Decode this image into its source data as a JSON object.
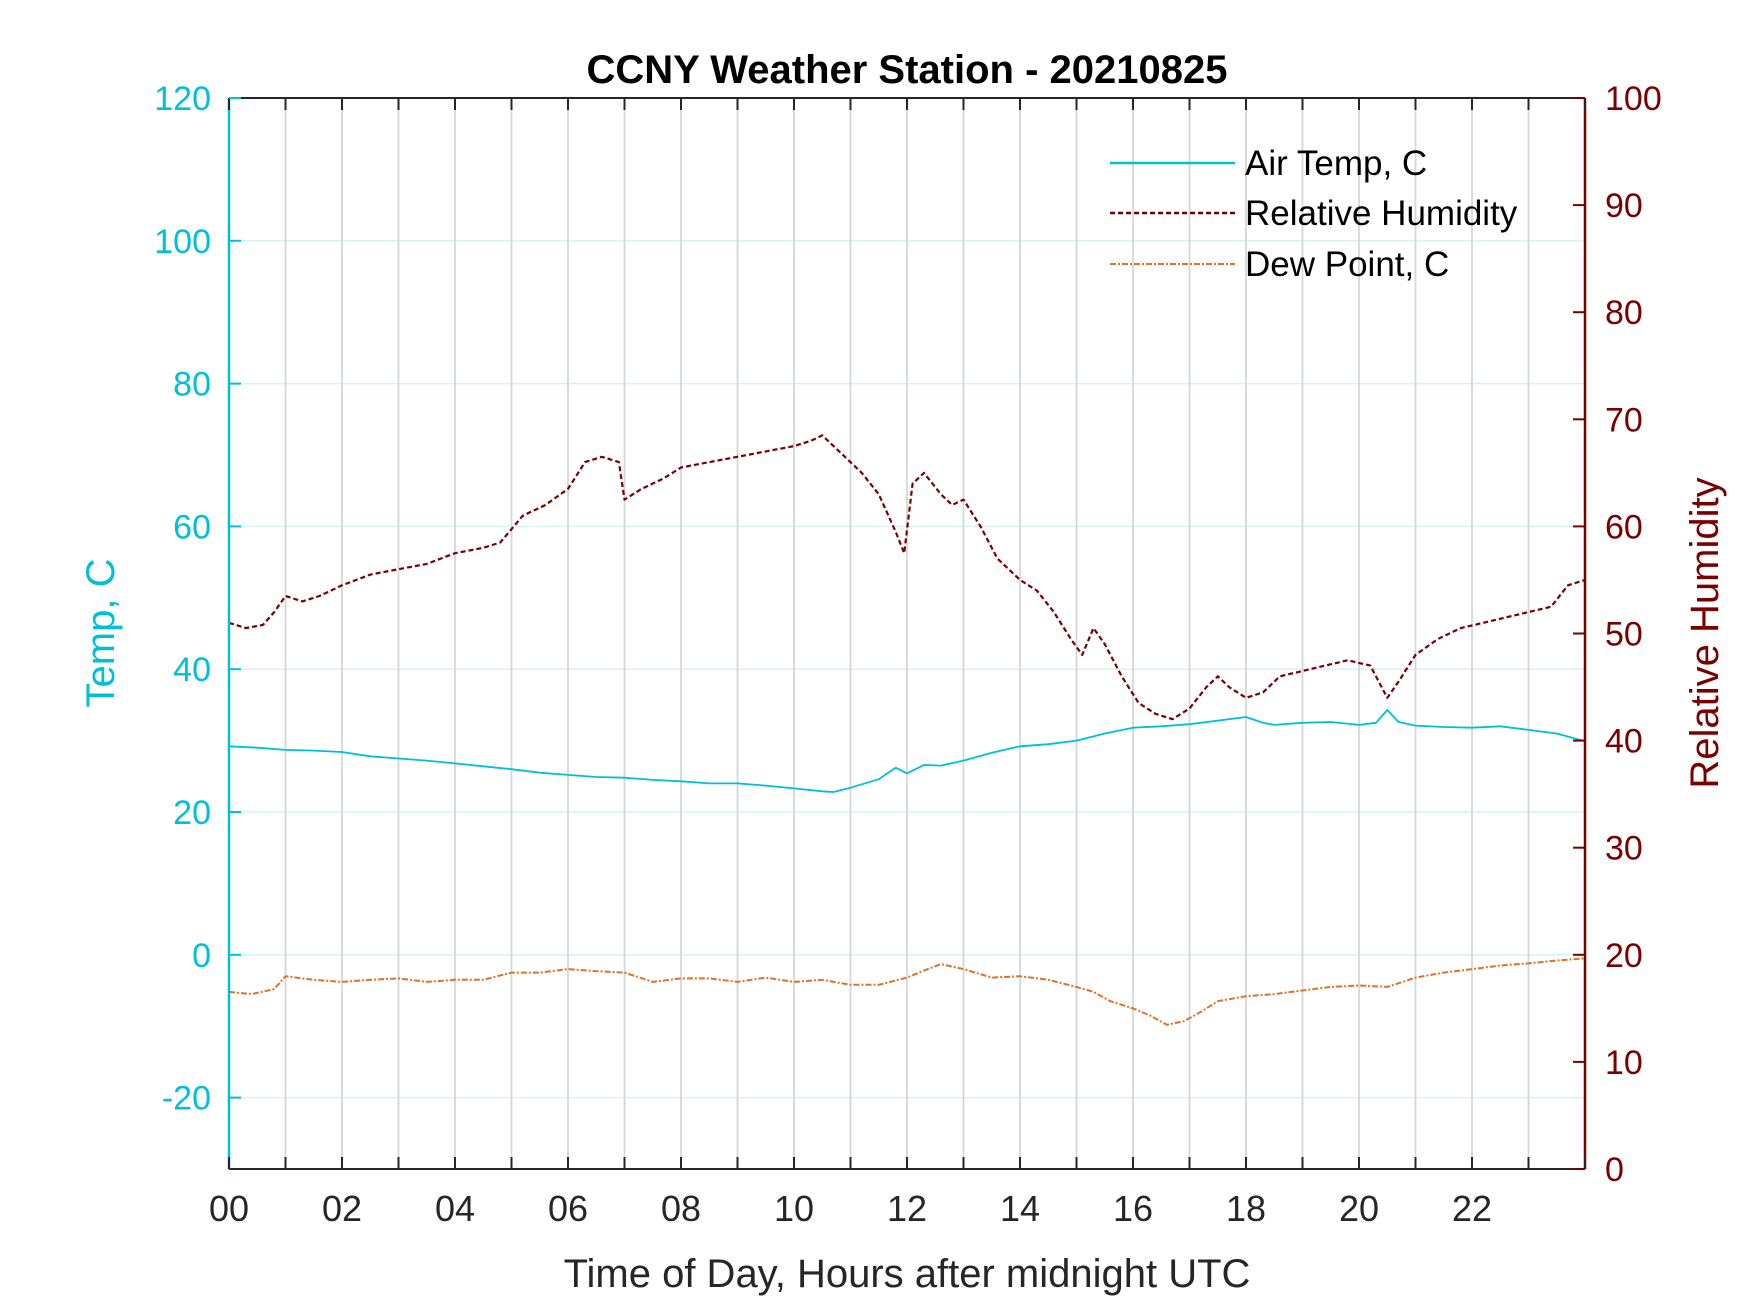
{
  "chart_data": {
    "type": "line",
    "title": "CCNY Weather Station - 20210825",
    "xlabel": "Time of Day, Hours after midnight UTC",
    "ylabel_left": "Temp, C",
    "ylabel_right": "Relative Humidity",
    "xlim": [
      0,
      24
    ],
    "ylim_left": [
      -30,
      120
    ],
    "ylim_right": [
      0,
      100
    ],
    "x_ticks": [
      0,
      2,
      4,
      6,
      8,
      10,
      12,
      14,
      16,
      18,
      20,
      22
    ],
    "x_tick_labels": [
      "00",
      "02",
      "04",
      "06",
      "08",
      "10",
      "12",
      "14",
      "16",
      "18",
      "20",
      "22"
    ],
    "y_left_ticks": [
      -20,
      0,
      20,
      40,
      60,
      80,
      100,
      120
    ],
    "y_right_ticks": [
      0,
      10,
      20,
      30,
      40,
      50,
      60,
      70,
      80,
      90,
      100
    ],
    "grid": "vertical hourly lines; horizontal lines at left-axis ticks",
    "legend_position": "top-right",
    "colors": {
      "left_axis": "#00BFD8",
      "right_axis": "#7A0000",
      "air_temp": "#00BFD8",
      "humidity": "#7A0000",
      "dew_point": "#E0702A",
      "grid_vertical": "#D3D7DB",
      "grid_horizontal": "#D6F2F6"
    },
    "series": [
      {
        "name": "Air Temp, C",
        "axis": "left",
        "style": "solid",
        "x": [
          0,
          0.5,
          1,
          1.5,
          2,
          2.5,
          3,
          3.5,
          4,
          4.5,
          5,
          5.5,
          6,
          6.5,
          7,
          7.5,
          8,
          8.5,
          9,
          9.5,
          10,
          10.5,
          10.7,
          11,
          11.5,
          11.8,
          12,
          12.3,
          12.6,
          13,
          13.5,
          14,
          14.5,
          15,
          15.5,
          16,
          16.5,
          17,
          17.5,
          18,
          18.3,
          18.5,
          19,
          19.5,
          20,
          20.3,
          20.5,
          20.7,
          21,
          21.5,
          22,
          22.5,
          23,
          23.5,
          24
        ],
        "y": [
          29.2,
          29.0,
          28.7,
          28.6,
          28.4,
          27.8,
          27.5,
          27.2,
          26.8,
          26.4,
          26.0,
          25.5,
          25.2,
          24.9,
          24.8,
          24.5,
          24.3,
          24.0,
          24.0,
          23.7,
          23.3,
          22.9,
          22.8,
          23.4,
          24.6,
          26.2,
          25.4,
          26.6,
          26.5,
          27.2,
          28.3,
          29.2,
          29.5,
          30.0,
          31.0,
          31.8,
          32.0,
          32.3,
          32.8,
          33.3,
          32.5,
          32.2,
          32.5,
          32.6,
          32.2,
          32.5,
          34.3,
          32.6,
          32.1,
          31.9,
          31.8,
          32.0,
          31.5,
          31.0,
          29.9
        ]
      },
      {
        "name": "Relative Humidity",
        "axis": "right",
        "style": "dashed",
        "x": [
          0,
          0.3,
          0.6,
          0.8,
          1,
          1.3,
          1.6,
          2,
          2.5,
          3,
          3.5,
          4,
          4.5,
          4.8,
          5.2,
          5.6,
          6,
          6.3,
          6.6,
          6.9,
          7,
          7.3,
          7.7,
          8,
          8.5,
          9,
          9.5,
          10,
          10.3,
          10.5,
          10.8,
          11.2,
          11.5,
          11.8,
          11.95,
          12.1,
          12.3,
          12.6,
          12.8,
          13,
          13.3,
          13.6,
          14,
          14.3,
          14.6,
          14.9,
          15.1,
          15.3,
          15.5,
          15.8,
          16.1,
          16.4,
          16.7,
          17,
          17.3,
          17.5,
          17.7,
          18,
          18.3,
          18.6,
          19,
          19.4,
          19.8,
          20.2,
          20.5,
          20.7,
          21,
          21.4,
          21.8,
          22.2,
          22.6,
          23,
          23.4,
          23.7,
          24
        ],
        "y": [
          51,
          50.5,
          50.8,
          52,
          53.5,
          53,
          53.5,
          54.5,
          55.5,
          56,
          56.5,
          57.5,
          58,
          58.5,
          61,
          62,
          63.5,
          66,
          66.5,
          66,
          62.5,
          63.5,
          64.5,
          65.5,
          66,
          66.5,
          67,
          67.5,
          68,
          68.5,
          67,
          65,
          63,
          59.5,
          57.5,
          64,
          65,
          63,
          62,
          62.5,
          60,
          57,
          55,
          54,
          52,
          49.5,
          48,
          50.5,
          49,
          46,
          43.5,
          42.5,
          42,
          43,
          45,
          46,
          45,
          44,
          44.5,
          46,
          46.5,
          47,
          47.5,
          47,
          44,
          45.5,
          48,
          49.5,
          50.5,
          51,
          51.5,
          52,
          52.5,
          54.5,
          55
        ]
      },
      {
        "name": "Dew Point, C",
        "axis": "left",
        "style": "dash-dot",
        "x": [
          0,
          0.4,
          0.8,
          1,
          1.5,
          2,
          2.5,
          3,
          3.5,
          4,
          4.5,
          5,
          5.5,
          6,
          6.5,
          7,
          7.5,
          8,
          8.5,
          9,
          9.5,
          10,
          10.5,
          11,
          11.5,
          12,
          12.3,
          12.6,
          13,
          13.5,
          14,
          14.5,
          15,
          15.3,
          15.6,
          16,
          16.3,
          16.6,
          16.9,
          17.2,
          17.5,
          18,
          18.5,
          19,
          19.5,
          20,
          20.5,
          21,
          21.5,
          22,
          22.5,
          23,
          23.5,
          24
        ],
        "y": [
          -5.2,
          -5.5,
          -4.8,
          -3.0,
          -3.5,
          -3.8,
          -3.5,
          -3.3,
          -3.8,
          -3.5,
          -3.5,
          -2.5,
          -2.5,
          -2.0,
          -2.3,
          -2.5,
          -3.8,
          -3.3,
          -3.3,
          -3.8,
          -3.2,
          -3.8,
          -3.5,
          -4.2,
          -4.2,
          -3.2,
          -2.2,
          -1.3,
          -2.0,
          -3.2,
          -3.0,
          -3.5,
          -4.5,
          -5.2,
          -6.5,
          -7.5,
          -8.5,
          -9.8,
          -9.3,
          -8.0,
          -6.5,
          -5.8,
          -5.5,
          -5.0,
          -4.5,
          -4.3,
          -4.5,
          -3.2,
          -2.5,
          -2.0,
          -1.5,
          -1.2,
          -0.8,
          -0.5
        ]
      }
    ]
  }
}
